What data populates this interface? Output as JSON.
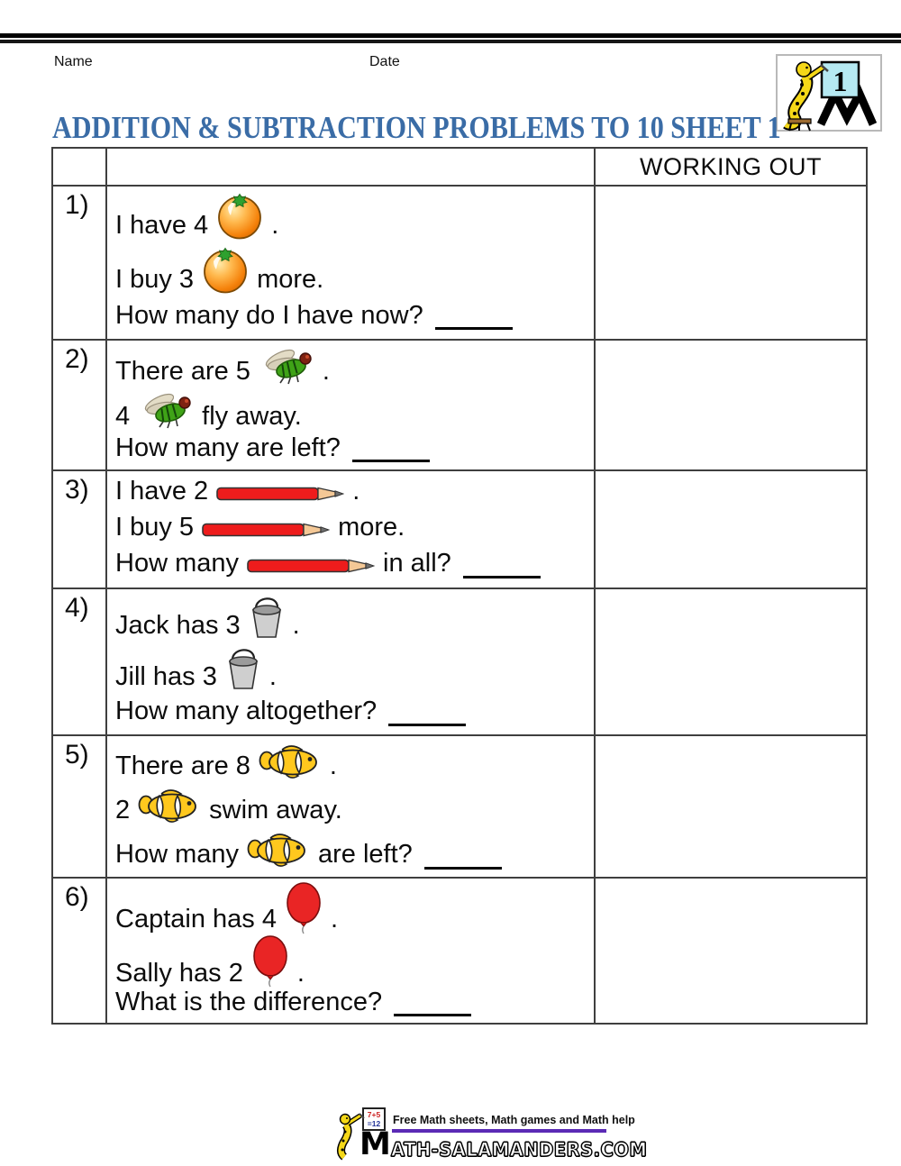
{
  "header": {
    "name_label": "Name",
    "date_label": "Date",
    "logo_number": "1"
  },
  "title": "ADDITION & SUBTRACTION PROBLEMS TO 10 SHEET 1",
  "table": {
    "working_out_header": "WORKING OUT",
    "rows": [
      {
        "number": "1)",
        "lines": [
          [
            {
              "text": "I have 4"
            },
            {
              "icon": "orange-icon"
            },
            {
              "text": "."
            }
          ],
          [
            {
              "text": "I buy 3"
            },
            {
              "icon": "orange-icon"
            },
            {
              "text": "more."
            }
          ],
          [
            {
              "text": "How many do I have now?"
            },
            {
              "blank": true
            }
          ]
        ]
      },
      {
        "number": "2)",
        "lines": [
          [
            {
              "text": "There are 5"
            },
            {
              "icon": "fly-icon"
            },
            {
              "text": "."
            }
          ],
          [
            {
              "text": "4"
            },
            {
              "icon": "fly-icon"
            },
            {
              "text": "fly away."
            }
          ],
          [
            {
              "text": "How many are left?"
            },
            {
              "blank": true
            }
          ]
        ]
      },
      {
        "number": "3)",
        "lines": [
          [
            {
              "text": "I have 2"
            },
            {
              "icon": "pencil-icon"
            },
            {
              "text": "."
            }
          ],
          [
            {
              "text": "I buy 5"
            },
            {
              "icon": "pencil-icon"
            },
            {
              "text": "more."
            }
          ],
          [
            {
              "text": "How many"
            },
            {
              "icon": "pencil-icon"
            },
            {
              "text": "in all?"
            },
            {
              "blank": true
            }
          ]
        ]
      },
      {
        "number": "4)",
        "lines": [
          [
            {
              "text": "Jack has 3"
            },
            {
              "icon": "bucket-icon"
            },
            {
              "text": "."
            }
          ],
          [
            {
              "text": "Jill has 3"
            },
            {
              "icon": "bucket-icon"
            },
            {
              "text": "."
            }
          ],
          [
            {
              "text": "How many altogether?"
            },
            {
              "blank": true
            }
          ]
        ]
      },
      {
        "number": "5)",
        "lines": [
          [
            {
              "text": "There are 8"
            },
            {
              "icon": "fish-icon"
            },
            {
              "text": "."
            }
          ],
          [
            {
              "text": "2"
            },
            {
              "icon": "fish-icon"
            },
            {
              "text": "swim away."
            }
          ],
          [
            {
              "text": "How many"
            },
            {
              "icon": "fish-icon"
            },
            {
              "text": "are left?"
            },
            {
              "blank": true
            }
          ]
        ]
      },
      {
        "number": "6)",
        "lines": [
          [
            {
              "text": "Captain has 4"
            },
            {
              "icon": "balloon-icon"
            },
            {
              "text": "."
            }
          ],
          [
            {
              "text": "Sally has 2"
            },
            {
              "icon": "balloon-icon"
            },
            {
              "text": "."
            }
          ],
          [
            {
              "text": "What is the difference?"
            },
            {
              "blank": true
            }
          ]
        ]
      }
    ]
  },
  "footer": {
    "tagline": "Free Math sheets, Math games and Math help",
    "site_first_letter": "M",
    "site_rest": "ATH-SALAMANDERS.COM",
    "mini_sign_line1": "7+5",
    "mini_sign_line2": "=12"
  },
  "icons": [
    "orange-icon",
    "fly-icon",
    "pencil-icon",
    "bucket-icon",
    "fish-icon",
    "balloon-icon",
    "salamander-number-logo",
    "salamander-footer-logo"
  ],
  "colors": {
    "title_blue": "#3A6CA6",
    "table_border": "#3F3F3F",
    "tagline_purple": "#5B2AB5",
    "orange": "#F5820B",
    "fly_green": "#3FA317",
    "pencil_red": "#EE1C1C",
    "bucket_gray": "#CFCFCF",
    "fish_yellow": "#FFC81E",
    "balloon_red": "#E92525",
    "logo_sign_cyan": "#B5E9F2",
    "salamander_yellow": "#F5D818"
  }
}
